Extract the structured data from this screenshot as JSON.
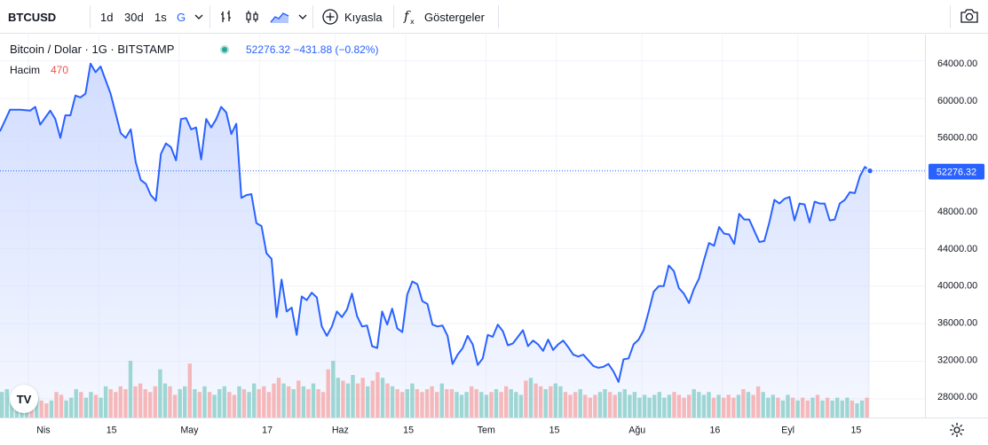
{
  "toolbar": {
    "symbol": "BTCUSD",
    "intervals": [
      "1d",
      "30d",
      "1s",
      "G"
    ],
    "compare_label": "Kıyasla",
    "indicators_label": "Göstergeler",
    "icons": [
      "chevron-down-icon",
      "bar-chart-icon",
      "candle-chart-icon",
      "area-chart-icon",
      "plus-circle-icon",
      "fx-icon",
      "camera-icon"
    ]
  },
  "legend": {
    "title": "Bitcoin / Dolar · 1G · BITSTAMP",
    "price": "52276.32",
    "change": "−431.88 (−0.82%)",
    "volume_label": "Hacim",
    "volume_value": "470"
  },
  "colors": {
    "line": "#2962ff",
    "area_top": "#cfdbff",
    "vol_up": "#80cbc4",
    "vol_down": "#f5a3a3",
    "vol_spike": "#ef9a9a",
    "accent": "#2962ff"
  },
  "chart_data": {
    "type": "area",
    "ylim": [
      26000,
      66800
    ],
    "y_ticks": [
      28000,
      32000,
      36000,
      40000,
      44000,
      48000,
      52000,
      56000,
      60000,
      64000
    ],
    "y_tick_labels": [
      "28000.00",
      "32000.00",
      "36000.00",
      "40000.00",
      "44000.00",
      "48000.00",
      "52000.00",
      "56000.00",
      "60000.00",
      "64000.00"
    ],
    "last_price_label": "52276.32",
    "last_price": 52276.32,
    "x_tick_labels": [
      "Nis",
      "15",
      "May",
      "17",
      "Haz",
      "15",
      "Tem",
      "15",
      "Ağu",
      "16",
      "Eyl",
      "15"
    ],
    "x_tick_days": [
      0,
      14,
      30,
      46,
      61,
      75,
      91,
      105,
      122,
      138,
      153,
      167
    ],
    "price_series": [
      [
        0,
        56500
      ],
      [
        2,
        58800
      ],
      [
        4,
        58800
      ],
      [
        6,
        58700
      ],
      [
        7,
        59100
      ],
      [
        8,
        57200
      ],
      [
        10,
        58700
      ],
      [
        11,
        57800
      ],
      [
        12,
        55800
      ],
      [
        13,
        58200
      ],
      [
        14,
        58200
      ],
      [
        15,
        60300
      ],
      [
        16,
        60100
      ],
      [
        17,
        60500
      ],
      [
        18,
        63700
      ],
      [
        19,
        62800
      ],
      [
        20,
        63400
      ],
      [
        22,
        60500
      ],
      [
        24,
        56300
      ],
      [
        25,
        55800
      ],
      [
        26,
        56700
      ],
      [
        27,
        53200
      ],
      [
        28,
        51300
      ],
      [
        29,
        50900
      ],
      [
        30,
        49700
      ],
      [
        31,
        49100
      ],
      [
        32,
        54100
      ],
      [
        33,
        55200
      ],
      [
        34,
        54800
      ],
      [
        35,
        53400
      ],
      [
        36,
        57800
      ],
      [
        37,
        57900
      ],
      [
        38,
        56700
      ],
      [
        39,
        56900
      ],
      [
        40,
        53500
      ],
      [
        41,
        57800
      ],
      [
        42,
        56900
      ],
      [
        43,
        57800
      ],
      [
        44,
        59100
      ],
      [
        45,
        58500
      ],
      [
        46,
        56200
      ],
      [
        47,
        57300
      ],
      [
        48,
        49400
      ],
      [
        49,
        49700
      ],
      [
        50,
        49800
      ],
      [
        51,
        46700
      ],
      [
        52,
        46400
      ],
      [
        53,
        43500
      ],
      [
        54,
        42900
      ],
      [
        55,
        36700
      ],
      [
        56,
        40700
      ],
      [
        57,
        37300
      ],
      [
        58,
        37700
      ],
      [
        59,
        34800
      ],
      [
        60,
        38900
      ],
      [
        61,
        38500
      ],
      [
        62,
        39300
      ],
      [
        63,
        38800
      ],
      [
        64,
        35700
      ],
      [
        65,
        34700
      ],
      [
        66,
        35700
      ],
      [
        67,
        37300
      ],
      [
        68,
        36700
      ],
      [
        69,
        37500
      ],
      [
        70,
        39200
      ],
      [
        71,
        36800
      ],
      [
        72,
        35700
      ],
      [
        73,
        35800
      ],
      [
        74,
        33600
      ],
      [
        75,
        33400
      ],
      [
        76,
        37300
      ],
      [
        77,
        35900
      ],
      [
        78,
        37600
      ],
      [
        79,
        35500
      ],
      [
        80,
        35100
      ],
      [
        81,
        39100
      ],
      [
        82,
        40500
      ],
      [
        83,
        40200
      ],
      [
        84,
        38400
      ],
      [
        85,
        38100
      ],
      [
        86,
        35900
      ],
      [
        87,
        35700
      ],
      [
        88,
        35800
      ],
      [
        89,
        34700
      ],
      [
        90,
        31700
      ],
      [
        91,
        32700
      ],
      [
        92,
        33400
      ],
      [
        93,
        34700
      ],
      [
        94,
        33800
      ],
      [
        95,
        31600
      ],
      [
        96,
        32300
      ],
      [
        97,
        34800
      ],
      [
        98,
        34600
      ],
      [
        99,
        35900
      ],
      [
        100,
        35200
      ],
      [
        101,
        33700
      ],
      [
        102,
        33900
      ],
      [
        103,
        34600
      ],
      [
        104,
        35300
      ],
      [
        105,
        33600
      ],
      [
        106,
        34200
      ],
      [
        107,
        33800
      ],
      [
        108,
        33100
      ],
      [
        109,
        34300
      ],
      [
        110,
        33200
      ],
      [
        111,
        33800
      ],
      [
        112,
        34200
      ],
      [
        113,
        33500
      ],
      [
        114,
        32700
      ],
      [
        115,
        32500
      ],
      [
        116,
        32700
      ],
      [
        117,
        32100
      ],
      [
        118,
        31500
      ],
      [
        119,
        31300
      ],
      [
        120,
        31400
      ],
      [
        121,
        31700
      ],
      [
        122,
        30900
      ],
      [
        123,
        29800
      ],
      [
        124,
        32200
      ],
      [
        125,
        32300
      ],
      [
        126,
        33800
      ],
      [
        127,
        34300
      ],
      [
        128,
        35300
      ],
      [
        129,
        37300
      ],
      [
        130,
        39400
      ],
      [
        131,
        40000
      ],
      [
        132,
        40000
      ],
      [
        133,
        42200
      ],
      [
        134,
        41600
      ],
      [
        135,
        39800
      ],
      [
        136,
        39200
      ],
      [
        137,
        38200
      ],
      [
        138,
        39700
      ],
      [
        139,
        40800
      ],
      [
        140,
        42800
      ],
      [
        141,
        44600
      ],
      [
        142,
        44300
      ],
      [
        143,
        46300
      ],
      [
        144,
        45600
      ],
      [
        145,
        45500
      ],
      [
        146,
        44500
      ],
      [
        147,
        47700
      ],
      [
        148,
        47100
      ],
      [
        149,
        47100
      ],
      [
        150,
        45900
      ],
      [
        151,
        44700
      ],
      [
        152,
        44800
      ],
      [
        153,
        46800
      ],
      [
        154,
        49200
      ],
      [
        155,
        48800
      ],
      [
        156,
        49300
      ],
      [
        157,
        49500
      ],
      [
        158,
        47000
      ],
      [
        159,
        48800
      ],
      [
        160,
        48700
      ],
      [
        161,
        46800
      ],
      [
        162,
        49000
      ],
      [
        163,
        48800
      ],
      [
        164,
        48800
      ],
      [
        165,
        47000
      ],
      [
        166,
        47100
      ],
      [
        167,
        48800
      ],
      [
        168,
        49200
      ],
      [
        169,
        50000
      ],
      [
        170,
        49900
      ],
      [
        171,
        51700
      ],
      [
        172,
        52700
      ],
      [
        173,
        52276.32
      ]
    ],
    "volume_rel": [
      0.45,
      0.5,
      0.35,
      0.3,
      0.55,
      0.4,
      0.3,
      0.35,
      0.3,
      0.25,
      0.3,
      0.45,
      0.4,
      0.3,
      0.35,
      0.5,
      0.45,
      0.35,
      0.45,
      0.4,
      0.35,
      0.55,
      0.5,
      0.45,
      0.55,
      0.5,
      1.0,
      0.55,
      0.6,
      0.5,
      0.45,
      0.55,
      0.85,
      0.6,
      0.55,
      0.4,
      0.5,
      0.55,
      0.95,
      0.5,
      0.45,
      0.55,
      0.45,
      0.4,
      0.5,
      0.55,
      0.45,
      0.4,
      0.55,
      0.5,
      0.45,
      0.6,
      0.5,
      0.55,
      0.45,
      0.6,
      0.7,
      0.6,
      0.55,
      0.5,
      0.65,
      0.55,
      0.5,
      0.6,
      0.5,
      0.45,
      0.85,
      1.0,
      0.7,
      0.65,
      0.6,
      0.75,
      0.6,
      0.7,
      0.55,
      0.65,
      0.8,
      0.7,
      0.6,
      0.55,
      0.5,
      0.45,
      0.5,
      0.6,
      0.5,
      0.45,
      0.5,
      0.55,
      0.45,
      0.6,
      0.5,
      0.5,
      0.45,
      0.4,
      0.45,
      0.55,
      0.5,
      0.45,
      0.4,
      0.45,
      0.5,
      0.45,
      0.55,
      0.5,
      0.45,
      0.4,
      0.65,
      0.7,
      0.6,
      0.55,
      0.5,
      0.55,
      0.6,
      0.55,
      0.45,
      0.4,
      0.45,
      0.5,
      0.4,
      0.35,
      0.4,
      0.45,
      0.5,
      0.45,
      0.4,
      0.45,
      0.5,
      0.4,
      0.45,
      0.35,
      0.4,
      0.35,
      0.4,
      0.45,
      0.35,
      0.4,
      0.45,
      0.4,
      0.35,
      0.4,
      0.5,
      0.45,
      0.4,
      0.45,
      0.35,
      0.4,
      0.35,
      0.4,
      0.35,
      0.4,
      0.5,
      0.45,
      0.4,
      0.55,
      0.45,
      0.35,
      0.4,
      0.35,
      0.3,
      0.4,
      0.35,
      0.3,
      0.35,
      0.3,
      0.35,
      0.4,
      0.3,
      0.35,
      0.3,
      0.35,
      0.3,
      0.35,
      0.3,
      0.25,
      0.3,
      0.35
    ]
  }
}
